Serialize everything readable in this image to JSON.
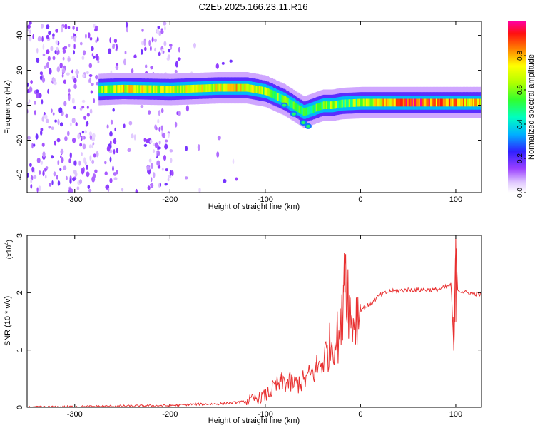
{
  "title": "C2E5.2025.166.23.11.R16",
  "chart_data": [
    {
      "type": "heatmap",
      "xlabel": "Height of straight line (km)",
      "ylabel": "Frequency (Hz)",
      "xlim": [
        -350,
        127
      ],
      "ylim": [
        -50,
        48
      ],
      "xticks": [
        -300,
        -200,
        -100,
        0,
        100
      ],
      "yticks": [
        -40,
        -20,
        0,
        20,
        40
      ],
      "colorbar": {
        "label": "Normalized spectral amplitude",
        "range": [
          0,
          1
        ],
        "ticks": [
          0.0,
          0.2,
          0.4,
          0.6,
          0.8
        ],
        "colors": [
          "#ffffff",
          "#c8a8f0",
          "#7a2be0",
          "#1a1aff",
          "#00c8ff",
          "#00ff80",
          "#40ff00",
          "#ffff00",
          "#ff8000",
          "#ff0000",
          "#ff00a0"
        ]
      },
      "ridge": {
        "x": [
          -275,
          -250,
          -200,
          -150,
          -120,
          -100,
          -80,
          -60,
          -50,
          -40,
          -30,
          -20,
          0,
          50,
          100,
          127
        ],
        "freq": [
          9,
          9.5,
          9,
          10,
          10,
          8,
          3,
          -4,
          -2,
          0,
          0,
          1,
          1.5,
          1.5,
          1.5,
          1.5
        ],
        "amplitude": [
          0.6,
          0.7,
          0.65,
          0.7,
          0.75,
          0.6,
          0.55,
          0.45,
          0.5,
          0.55,
          0.6,
          0.55,
          0.6,
          0.9,
          0.8,
          0.7
        ]
      },
      "branch": {
        "x": [
          -80,
          -70,
          -60,
          -55
        ],
        "freq": [
          0,
          -5,
          -10,
          -12
        ]
      }
    },
    {
      "type": "line",
      "xlabel": "Height of straight line (km)",
      "ylabel": "SNR (10 * v/v)",
      "y_multiplier": "(x10^4)",
      "y_multiplier_base": "(x10",
      "y_multiplier_exp": "4",
      "y_multiplier_close": ")",
      "xlim": [
        -350,
        127
      ],
      "ylim": [
        0,
        3
      ],
      "xticks": [
        -300,
        -200,
        -100,
        0,
        100
      ],
      "yticks": [
        0,
        1,
        2,
        3
      ],
      "color": "#e83030",
      "series": [
        {
          "x": [
            -350,
            -300,
            -250,
            -200,
            -180,
            -150,
            -120,
            -100,
            -90,
            -80,
            -70,
            -60,
            -50,
            -40,
            -30,
            -20,
            -17,
            -10,
            0,
            10,
            20,
            30,
            50,
            80,
            90,
            95,
            98,
            100,
            102,
            110,
            127
          ],
          "y": [
            0.0,
            0.01,
            0.02,
            0.03,
            0.05,
            0.06,
            0.1,
            0.2,
            0.35,
            0.45,
            0.4,
            0.45,
            0.6,
            0.8,
            1.15,
            1.3,
            2.7,
            1.5,
            1.7,
            1.8,
            1.95,
            2.02,
            2.05,
            2.05,
            2.1,
            2.15,
            1.0,
            2.95,
            2.05,
            2.0,
            1.97
          ]
        }
      ]
    }
  ]
}
